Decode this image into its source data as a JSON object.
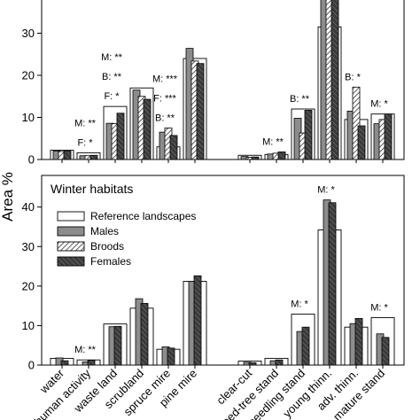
{
  "y_axis_label": "Area %",
  "colors": {
    "reference": "#ffffff",
    "males": "#8c8c8c",
    "broods_hatch": "#333333",
    "females": "#4a4a4a"
  },
  "legend": {
    "items": [
      {
        "key": "reference",
        "label": "Reference landscapes",
        "pattern": "solid-white"
      },
      {
        "key": "males",
        "label": "Males",
        "pattern": "solid-grey"
      },
      {
        "key": "broods",
        "label": "Broods",
        "pattern": "diagonal-hatch"
      },
      {
        "key": "females",
        "label": "Females",
        "pattern": "dark-hatch"
      }
    ]
  },
  "chart_data": [
    {
      "type": "bar",
      "panel": "summer",
      "title": "",
      "ylim": [
        0,
        40
      ],
      "yticks": [
        0,
        10,
        20,
        30
      ],
      "categories": [
        "water",
        "human activity",
        "waste land",
        "scrubland",
        "spruce mire",
        "pine mire",
        "clear-cut",
        "seed-tree stand",
        "seedling stand",
        "young thinn.",
        "adv. thinn.",
        "mature stand"
      ],
      "gap_after_index": 5,
      "series": [
        {
          "name": "Reference landscapes",
          "values": [
            2.2,
            1.6,
            12.6,
            17.0,
            3.0,
            24.0,
            1.0,
            1.2,
            12.0,
            31.5,
            9.5,
            10.8
          ]
        },
        {
          "name": "Males",
          "values": [
            2.0,
            0.9,
            8.6,
            16.5,
            6.5,
            26.4,
            0.7,
            1.3,
            9.8,
            44.0,
            11.5,
            8.5
          ]
        },
        {
          "name": "Broods",
          "values": [
            1.9,
            0.9,
            8.5,
            15.0,
            7.5,
            23.4,
            0.5,
            1.5,
            6.3,
            41.0,
            17.2,
            9.5
          ]
        },
        {
          "name": "Females",
          "values": [
            2.0,
            1.0,
            11.0,
            14.3,
            5.7,
            22.8,
            0.6,
            1.8,
            11.7,
            39.5,
            8.0,
            10.8
          ]
        }
      ],
      "annotations": [
        {
          "category_index": 1,
          "lines": [
            "M: **",
            "F: *"
          ]
        },
        {
          "category_index": 2,
          "lines": [
            "M: **",
            "B: **",
            "F: *"
          ]
        },
        {
          "category_index": 4,
          "lines": [
            "M: ***",
            "F: ***",
            "B: **"
          ]
        },
        {
          "category_index": 7,
          "lines": [
            "M: **"
          ]
        },
        {
          "category_index": 8,
          "lines": [
            "B: **"
          ]
        },
        {
          "category_index": 10,
          "lines": [
            "B: *"
          ]
        },
        {
          "category_index": 11,
          "lines": [
            "M: *"
          ]
        }
      ]
    },
    {
      "type": "bar",
      "panel": "winter",
      "title": "Winter habitats",
      "ylim": [
        0,
        48
      ],
      "yticks": [
        0,
        10,
        20,
        30,
        40
      ],
      "categories": [
        "water",
        "human activity",
        "waste land",
        "scrubland",
        "spruce mire",
        "pine mire",
        "clear-cut",
        "seed-tree stand",
        "seedling stand",
        "young thinn.",
        "adv. thinn.",
        "mature stand"
      ],
      "gap_after_index": 5,
      "series": [
        {
          "name": "Reference landscapes",
          "values": [
            1.7,
            1.3,
            10.4,
            14.4,
            4.0,
            21.2,
            1.0,
            1.7,
            12.9,
            34.2,
            9.6,
            12.0
          ]
        },
        {
          "name": "Males",
          "values": [
            1.8,
            0.8,
            9.7,
            16.8,
            4.6,
            21.2,
            0.7,
            1.1,
            8.5,
            41.8,
            10.5,
            7.9
          ]
        },
        {
          "name": "Females",
          "values": [
            1.1,
            1.2,
            9.8,
            15.6,
            4.3,
            22.6,
            0.6,
            1.3,
            9.6,
            41.1,
            11.8,
            7.0
          ]
        }
      ],
      "annotations": [
        {
          "category_index": 1,
          "lines": [
            "M: **"
          ]
        },
        {
          "category_index": 8,
          "lines": [
            "M: *"
          ]
        },
        {
          "category_index": 9,
          "lines": [
            "M: *"
          ]
        },
        {
          "category_index": 11,
          "lines": [
            "M: *"
          ]
        }
      ]
    }
  ]
}
